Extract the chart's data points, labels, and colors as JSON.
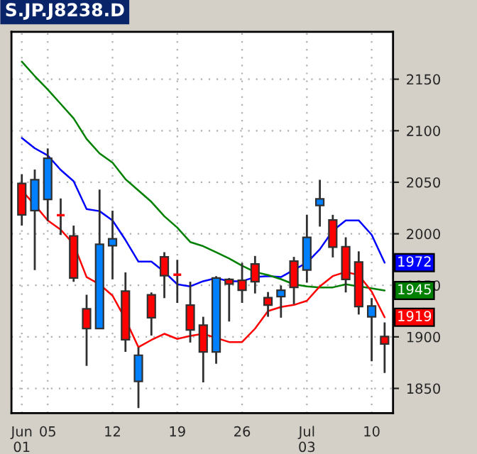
{
  "chart_data": {
    "type": "candlestick",
    "title": "S.JP.J8238.D",
    "categories": [
      "Jun\n01",
      null,
      "05",
      null,
      null,
      null,
      null,
      "12",
      null,
      null,
      null,
      null,
      "19",
      null,
      null,
      null,
      null,
      "26",
      null,
      null,
      null,
      null,
      "Jul\n03",
      null,
      null,
      null,
      null,
      "10",
      null
    ],
    "ohlc": [
      [
        2048.8,
        2057.9,
        2008,
        2018.4
      ],
      [
        2022.5,
        2062.4,
        1964.8,
        2052.4
      ],
      [
        2033.4,
        2082.9,
        2012.5,
        2073.3
      ],
      [
        2018,
        2034.3,
        1998.9,
        2018
      ],
      [
        1998,
        2008,
        1953.5,
        1957.1
      ],
      [
        1927.2,
        1940.8,
        1871.8,
        1908.1
      ],
      [
        1908.1,
        2042.9,
        1908.1,
        1989.8
      ],
      [
        1988.4,
        2022.5,
        1955.8,
        1995.2
      ],
      [
        1944.4,
        1962.6,
        1885.4,
        1897.2
      ],
      [
        1856.8,
        1890,
        1831,
        1882.2
      ],
      [
        1940.8,
        1943.1,
        1901.3,
        1918.6
      ],
      [
        1977.6,
        1982.1,
        1937.6,
        1959.4
      ],
      [
        1960.3,
        1974.8,
        1933,
        1960.3
      ],
      [
        1930.8,
        1953.5,
        1894.5,
        1906.7
      ],
      [
        1911.3,
        1919.5,
        1855.9,
        1885.4
      ],
      [
        1885.4,
        1958.9,
        1874,
        1957.1
      ],
      [
        1955.8,
        1957.1,
        1914.9,
        1951.2
      ],
      [
        1954.9,
        1971.7,
        1933,
        1945.3
      ],
      [
        1970.7,
        1978.5,
        1942.1,
        1953.5
      ],
      [
        1938,
        1943.5,
        1919.5,
        1930.8
      ],
      [
        1939,
        1949.8,
        1918.6,
        1945.3
      ],
      [
        1973.5,
        1977.6,
        1931.7,
        1948
      ],
      [
        1964.8,
        2018.4,
        1952.6,
        1996.6
      ],
      [
        2027.5,
        2052.4,
        2007,
        2033.8
      ],
      [
        2013.4,
        2018.4,
        1977.1,
        1987
      ],
      [
        1987.5,
        1996.6,
        1943.1,
        1955.8
      ],
      [
        1972.6,
        1983,
        1921.7,
        1929.4
      ],
      [
        1919.5,
        1937.6,
        1876.3,
        1929.9
      ],
      [
        1900.4,
        1914,
        1865,
        1893.1
      ]
    ],
    "colors": [
      "#ff0000",
      "#0080ff",
      "#0080ff",
      "#ff0000",
      "#ff0000",
      "#ff0000",
      "#0080ff",
      "#0080ff",
      "#ff0000",
      "#0080ff",
      "#ff0000",
      "#ff0000",
      "#ff0000",
      "#ff0000",
      "#ff0000",
      "#0080ff",
      "#ff0000",
      "#ff0000",
      "#ff0000",
      "#ff0000",
      "#0080ff",
      "#ff0000",
      "#0080ff",
      "#0080ff",
      "#ff0000",
      "#ff0000",
      "#ff0000",
      "#0080ff",
      "#ff0000"
    ],
    "series": [
      {
        "type": "line",
        "color": "#0000ff",
        "values": [
          2093,
          2083,
          2076,
          2062,
          2051,
          2024,
          2022,
          2013,
          1994,
          1973,
          1973,
          1963,
          1951,
          1949,
          1954,
          1957,
          1954,
          1954,
          1958,
          1959,
          1958,
          1965,
          1972,
          1985,
          2003,
          2013,
          2013,
          1999,
          1972
        ],
        "value_labels": [
          null,
          null,
          null,
          null,
          null,
          null,
          null,
          null,
          null,
          null,
          null,
          null,
          null,
          null,
          null,
          null,
          null,
          null,
          null,
          null,
          null,
          null,
          null,
          null,
          null,
          null,
          null,
          null,
          "1972"
        ]
      },
      {
        "type": "line",
        "color": "#008000",
        "values": [
          2167,
          2153,
          2140,
          2126,
          2112,
          2092,
          2078,
          2069,
          2053,
          2042,
          2031,
          2017,
          2006,
          1992,
          1988,
          1982,
          1976,
          1969,
          1963,
          1960,
          1956,
          1951,
          1949,
          1948,
          1948,
          1951,
          1949,
          1947,
          1945
        ],
        "value_labels": [
          null,
          null,
          null,
          null,
          null,
          null,
          null,
          null,
          null,
          null,
          null,
          null,
          null,
          null,
          null,
          null,
          null,
          null,
          null,
          null,
          null,
          null,
          null,
          null,
          null,
          null,
          null,
          null,
          "1945"
        ]
      },
      {
        "type": "line",
        "color": "#ff0000",
        "values": [
          2042,
          2028,
          2013,
          2004,
          1990,
          1958,
          1951,
          1940,
          1917,
          1890,
          1897,
          1903,
          1898,
          1901,
          1903,
          1899,
          1895,
          1895,
          1908,
          1925,
          1929,
          1931,
          1935,
          1949,
          1959,
          1963,
          1960,
          1944,
          1919
        ],
        "value_labels": [
          null,
          null,
          null,
          null,
          null,
          null,
          null,
          null,
          null,
          null,
          null,
          null,
          null,
          null,
          null,
          null,
          null,
          null,
          null,
          null,
          null,
          null,
          null,
          null,
          null,
          null,
          null,
          null,
          "1919"
        ]
      }
    ],
    "ylim": [
      1826,
      2196
    ],
    "yticks": [
      1850,
      1900,
      1950,
      2000,
      2050,
      2100,
      2150
    ],
    "grid": true
  }
}
